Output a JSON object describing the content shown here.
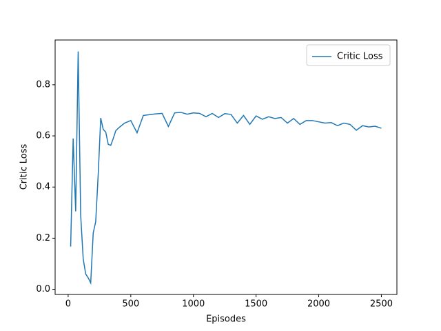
{
  "chart_data": {
    "type": "line",
    "xlabel": "Episodes",
    "ylabel": "Critic Loss",
    "x": [
      20,
      40,
      60,
      80,
      100,
      120,
      140,
      160,
      180,
      200,
      220,
      240,
      260,
      280,
      300,
      320,
      340,
      360,
      380,
      400,
      450,
      500,
      550,
      600,
      650,
      700,
      750,
      800,
      850,
      900,
      950,
      1000,
      1050,
      1100,
      1150,
      1200,
      1250,
      1300,
      1350,
      1400,
      1450,
      1500,
      1550,
      1600,
      1650,
      1700,
      1750,
      1800,
      1850,
      1900,
      1950,
      2000,
      2050,
      2100,
      2150,
      2200,
      2250,
      2300,
      2350,
      2400,
      2450,
      2500
    ],
    "series": [
      {
        "name": "Critic Loss",
        "color": "#1f77b4",
        "values": [
          0.167,
          0.59,
          0.305,
          0.93,
          0.29,
          0.12,
          0.06,
          0.045,
          0.025,
          0.22,
          0.265,
          0.45,
          0.67,
          0.625,
          0.615,
          0.567,
          0.563,
          0.59,
          0.62,
          0.63,
          0.65,
          0.66,
          0.612,
          0.68,
          0.683,
          0.686,
          0.688,
          0.637,
          0.69,
          0.692,
          0.685,
          0.69,
          0.688,
          0.675,
          0.688,
          0.672,
          0.687,
          0.684,
          0.65,
          0.68,
          0.645,
          0.678,
          0.665,
          0.675,
          0.668,
          0.672,
          0.65,
          0.668,
          0.645,
          0.66,
          0.66,
          0.655,
          0.65,
          0.652,
          0.64,
          0.65,
          0.645,
          0.622,
          0.64,
          0.635,
          0.638,
          0.63
        ]
      }
    ],
    "xlim": [
      -104,
      2624
    ],
    "xticks": [
      0,
      500,
      1000,
      1500,
      2000,
      2500
    ],
    "ylim": [
      -0.02,
      0.975
    ],
    "yticks": [
      {
        "value": 0,
        "label": "0.0"
      },
      0.2,
      0.4,
      0.6,
      0.8
    ],
    "legend": "upper right"
  }
}
